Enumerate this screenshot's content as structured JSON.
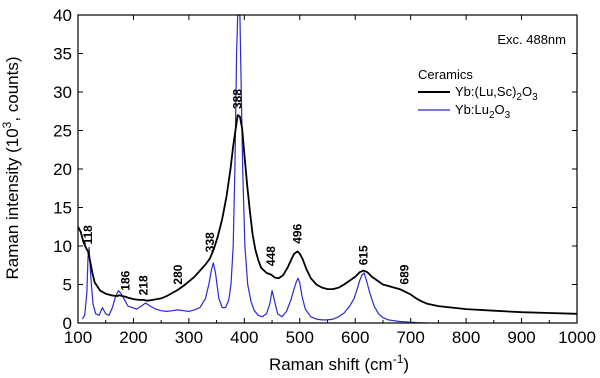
{
  "chart_data": {
    "type": "line",
    "xlabel": "Raman shift (cm",
    "xlabel_sup": "-1",
    "xlabel_end": ")",
    "ylabel": "Raman intensity (10",
    "ylabel_sup": "3",
    "ylabel_end": ", counts)",
    "xlim": [
      100,
      1000
    ],
    "ylim": [
      0,
      40
    ],
    "xticks": [
      "100",
      "200",
      "300",
      "400",
      "500",
      "600",
      "700",
      "800",
      "900",
      "1000"
    ],
    "yticks": [
      "0",
      "5",
      "10",
      "15",
      "20",
      "25",
      "30",
      "35",
      "40"
    ],
    "annotation": "Exc. 488nm",
    "legend_title": "Ceramics",
    "legend_position": "top-right",
    "series": [
      {
        "name": "Yb:(Lu,Sc)2O3",
        "label_parts": [
          "Yb:(Lu,Sc)",
          "2",
          "O",
          "3"
        ],
        "color": "#000000",
        "x": [
          100,
          105,
          110,
          114,
          118,
          122,
          126,
          130,
          140,
          150,
          160,
          170,
          175,
          180,
          186,
          190,
          200,
          210,
          218,
          225,
          235,
          250,
          260,
          270,
          280,
          290,
          300,
          310,
          320,
          330,
          338,
          345,
          352,
          360,
          368,
          375,
          380,
          385,
          388,
          392,
          396,
          400,
          405,
          410,
          415,
          420,
          425,
          430,
          440,
          448,
          455,
          462,
          470,
          478,
          485,
          490,
          496,
          500,
          505,
          512,
          520,
          530,
          540,
          550,
          560,
          570,
          580,
          590,
          600,
          608,
          615,
          622,
          630,
          640,
          650,
          660,
          670,
          680,
          689,
          700,
          710,
          720,
          730,
          750,
          775,
          800,
          850,
          900,
          950,
          1000
        ],
        "y": [
          12.5,
          11.8,
          10.5,
          9.8,
          9.3,
          8.0,
          6.5,
          5.3,
          4.2,
          3.8,
          3.6,
          3.5,
          3.6,
          3.5,
          3.4,
          3.3,
          3.1,
          3.0,
          3.0,
          2.9,
          3.0,
          3.2,
          3.5,
          3.9,
          4.3,
          4.8,
          5.4,
          6.0,
          6.8,
          7.6,
          8.4,
          9.6,
          11.2,
          13.5,
          16.5,
          20.0,
          23.0,
          25.5,
          27.0,
          26.8,
          25.3,
          22.0,
          18.0,
          14.5,
          11.5,
          9.5,
          8.2,
          7.2,
          6.5,
          6.3,
          5.9,
          5.8,
          6.2,
          7.2,
          8.3,
          9.0,
          9.3,
          9.0,
          8.3,
          7.0,
          5.8,
          5.0,
          4.6,
          4.4,
          4.4,
          4.6,
          5.0,
          5.5,
          6.0,
          6.6,
          6.8,
          6.6,
          6.0,
          5.5,
          5.0,
          4.8,
          4.6,
          4.4,
          4.1,
          3.7,
          3.2,
          2.8,
          2.5,
          2.2,
          2.0,
          1.8,
          1.6,
          1.4,
          1.3,
          1.2
        ]
      },
      {
        "name": "Yb:Lu2O3",
        "label_parts": [
          "Yb:Lu",
          "2",
          "O",
          "3"
        ],
        "color": "#2a2ad0",
        "x": [
          108,
          112,
          116,
          118,
          120,
          123,
          127,
          132,
          138,
          144,
          150,
          156,
          162,
          168,
          173,
          178,
          184,
          190,
          198,
          206,
          214,
          222,
          230,
          240,
          250,
          260,
          270,
          280,
          290,
          300,
          310,
          320,
          330,
          336,
          341,
          344,
          348,
          354,
          360,
          366,
          372,
          376,
          380,
          383,
          386,
          388,
          390,
          392,
          394,
          397,
          401,
          406,
          412,
          418,
          425,
          432,
          440,
          446,
          450,
          454,
          460,
          468,
          476,
          484,
          490,
          494,
          497,
          500,
          504,
          510,
          520,
          530,
          540,
          550,
          560,
          570,
          580,
          590,
          598,
          604,
          608,
          612,
          616,
          620,
          626,
          634,
          642,
          650,
          660,
          670,
          680,
          690,
          700,
          710,
          720,
          730
        ],
        "y": [
          0.5,
          1.0,
          4.0,
          8.5,
          9.8,
          6.0,
          2.5,
          1.2,
          1.0,
          2.0,
          1.2,
          1.0,
          2.0,
          3.5,
          4.2,
          3.8,
          3.0,
          2.2,
          2.0,
          1.8,
          2.2,
          2.6,
          2.2,
          1.8,
          1.6,
          1.5,
          1.6,
          1.7,
          1.6,
          1.5,
          1.7,
          2.0,
          3.2,
          5.0,
          7.0,
          7.8,
          6.5,
          3.2,
          2.0,
          2.0,
          3.0,
          5.0,
          10.0,
          20.0,
          35.0,
          40.0,
          40.0,
          40.0,
          32.0,
          20.0,
          10.0,
          5.0,
          2.8,
          1.6,
          1.0,
          0.8,
          1.2,
          2.5,
          4.2,
          3.0,
          1.2,
          0.8,
          1.5,
          3.0,
          4.5,
          5.4,
          5.8,
          5.2,
          3.5,
          1.8,
          0.8,
          0.5,
          0.4,
          0.4,
          0.5,
          0.8,
          1.3,
          2.2,
          3.2,
          4.5,
          5.5,
          6.2,
          6.5,
          5.6,
          4.0,
          2.2,
          1.2,
          0.7,
          0.4,
          0.3,
          0.2,
          0.15,
          0.1,
          0.05,
          0.02,
          0.0
        ]
      }
    ],
    "peak_labels": [
      {
        "text": "118",
        "x": 118,
        "y": 9.8
      },
      {
        "text": "186",
        "x": 186,
        "y": 3.8
      },
      {
        "text": "218",
        "x": 218,
        "y": 3.2
      },
      {
        "text": "280",
        "x": 280,
        "y": 4.6
      },
      {
        "text": "338",
        "x": 338,
        "y": 8.8
      },
      {
        "text": "388",
        "x": 388,
        "y": 27.4
      },
      {
        "text": "448",
        "x": 448,
        "y": 7.0
      },
      {
        "text": "496",
        "x": 496,
        "y": 9.9
      },
      {
        "text": "615",
        "x": 615,
        "y": 7.1
      },
      {
        "text": "689",
        "x": 689,
        "y": 4.6
      }
    ]
  }
}
